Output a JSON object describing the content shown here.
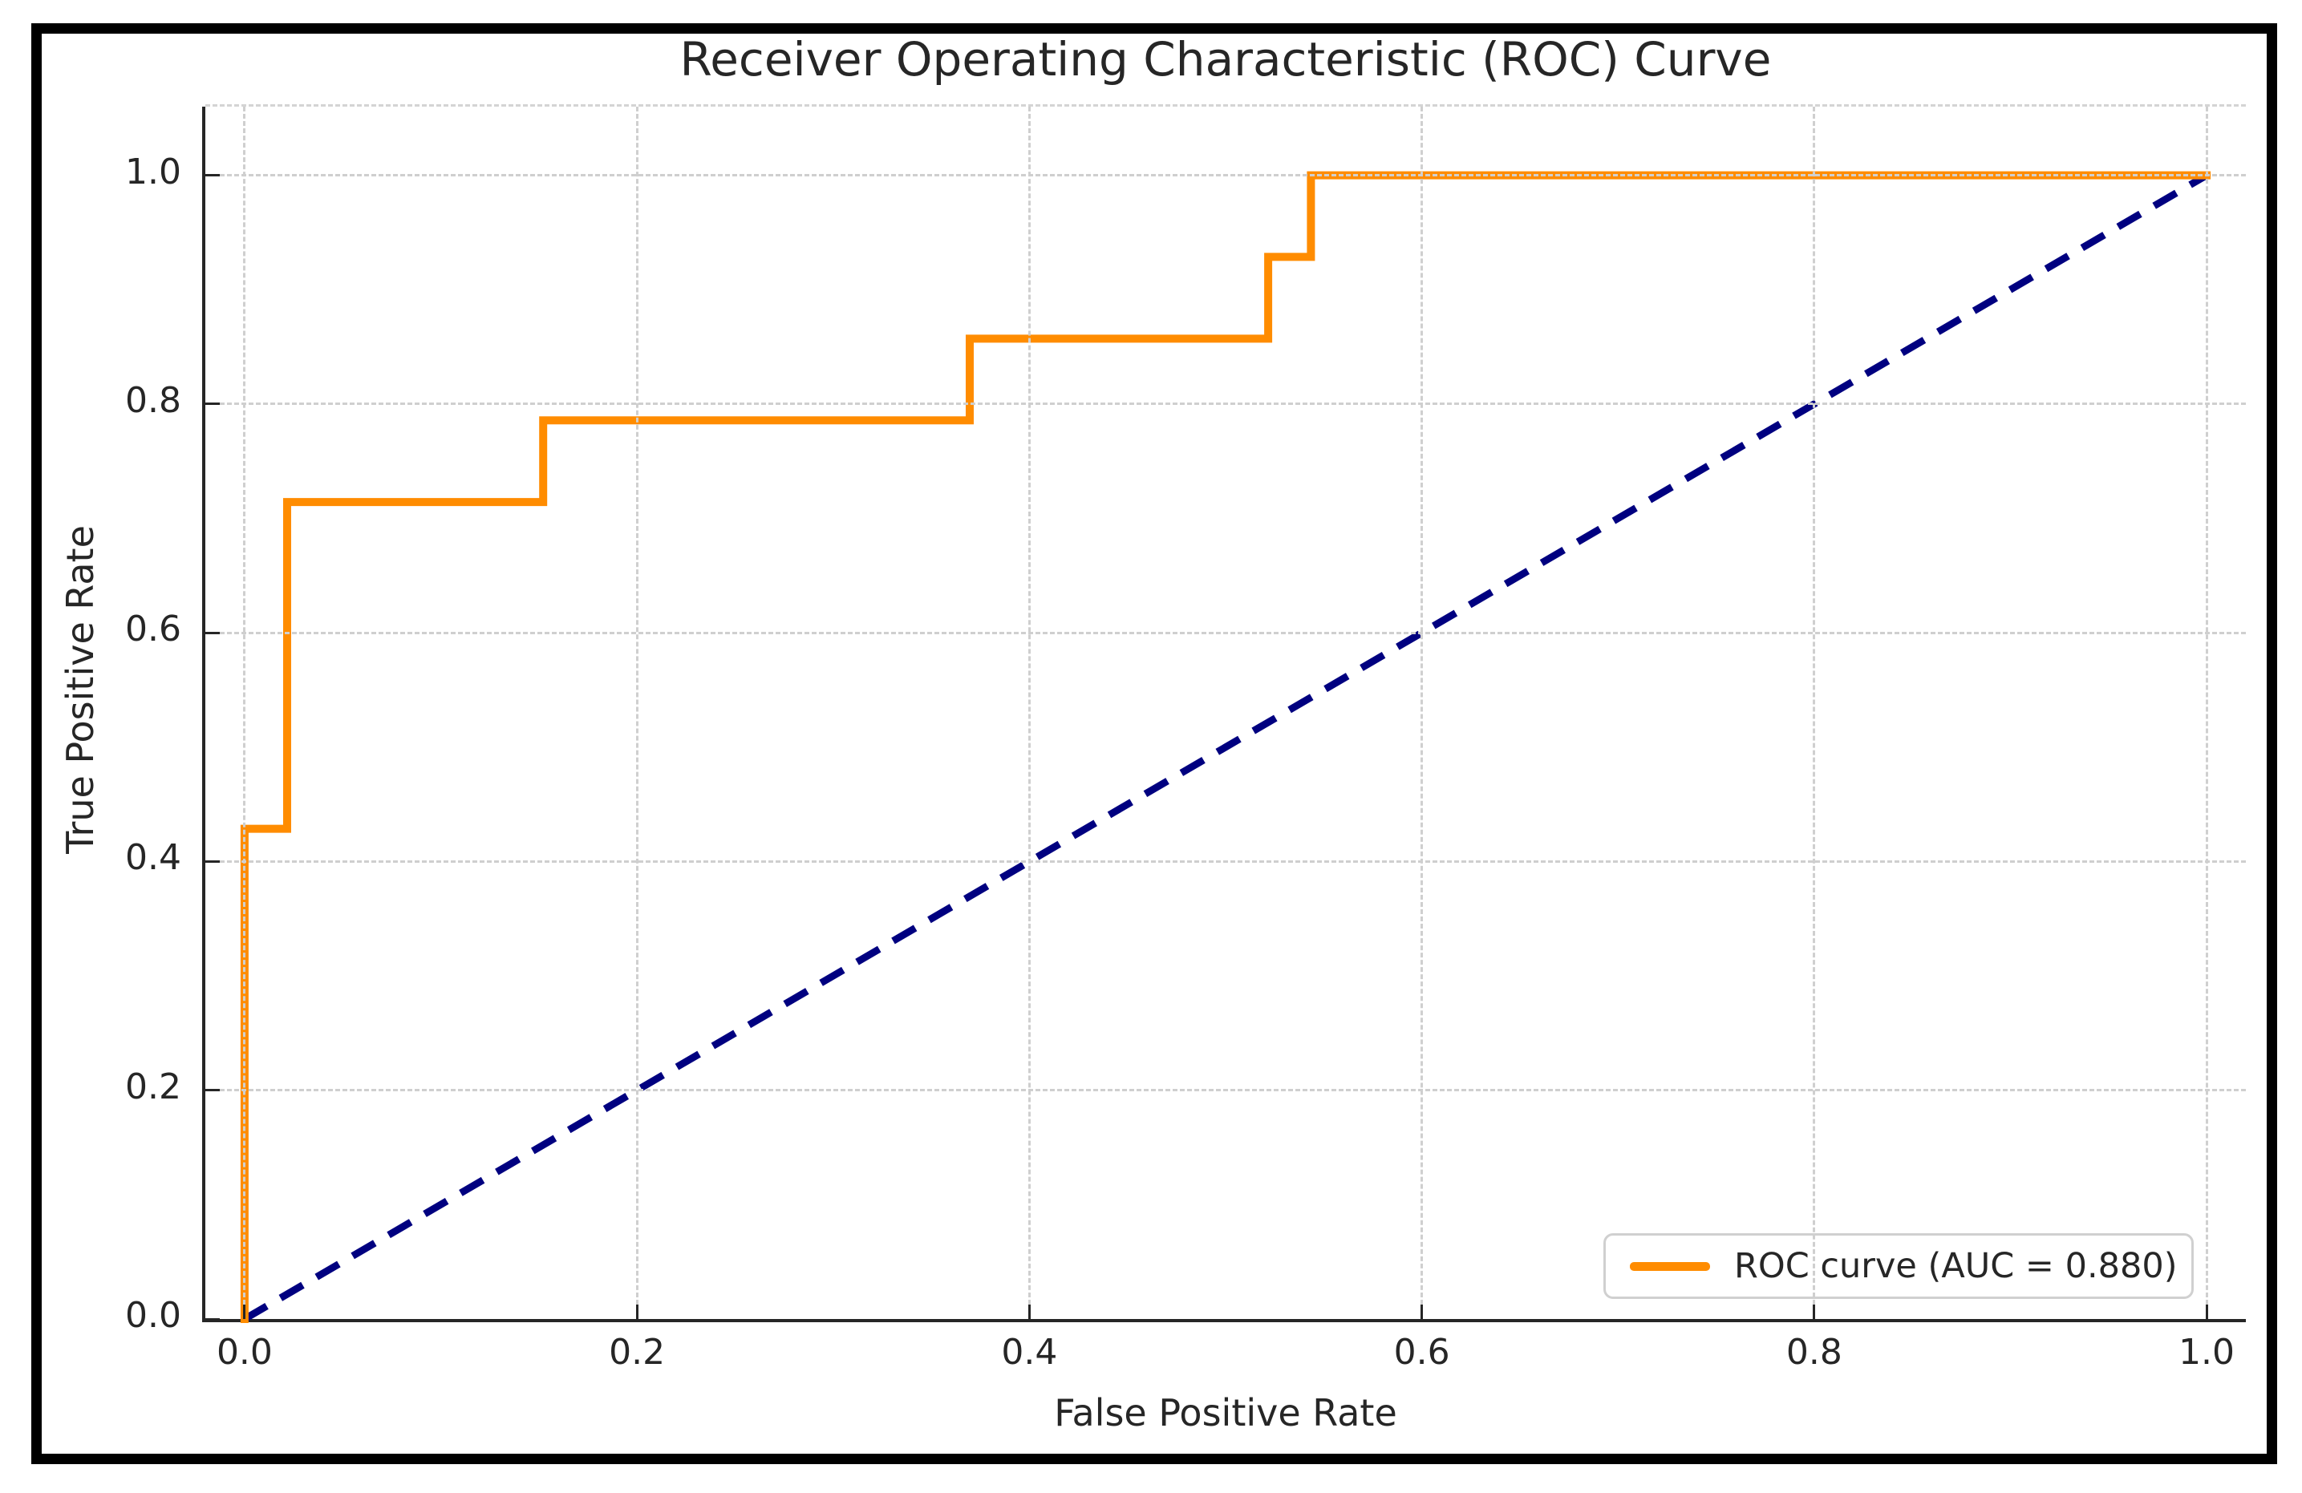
{
  "title": "Receiver Operating Characteristic (ROC) Curve",
  "chart_data": {
    "type": "line",
    "title": "Receiver Operating Characteristic (ROC) Curve",
    "xlabel": "False Positive Rate",
    "ylabel": "True Positive Rate",
    "xlim": [
      -0.02,
      1.02
    ],
    "ylim": [
      0,
      1.06
    ],
    "grid": true,
    "grid_style": "dashed",
    "x_ticks": [
      0.0,
      0.2,
      0.4,
      0.6,
      0.8,
      1.0
    ],
    "y_ticks": [
      0.0,
      0.2,
      0.4,
      0.6,
      0.8,
      1.0
    ],
    "x_tick_labels": [
      "0.0",
      "0.2",
      "0.4",
      "0.6",
      "0.8",
      "1.0"
    ],
    "y_tick_labels": [
      "0.0",
      "0.2",
      "0.4",
      "0.6",
      "0.8",
      "1.0"
    ],
    "auc": 0.88,
    "series": [
      {
        "name": "ROC curve (AUC = 0.880)",
        "color": "#FF8C00",
        "style": "solid",
        "line_width": 10,
        "x": [
          0.0,
          0.0,
          0.0217,
          0.0217,
          0.1522,
          0.1522,
          0.3696,
          0.3696,
          0.5217,
          0.5217,
          0.5435,
          0.5435,
          1.0
        ],
        "y": [
          0.0,
          0.4286,
          0.4286,
          0.7143,
          0.7143,
          0.7857,
          0.7857,
          0.8571,
          0.8571,
          0.9286,
          0.9286,
          1.0,
          1.0
        ]
      },
      {
        "name": "chance-diagonal",
        "color": "#000080",
        "style": "dashed",
        "line_width": 9,
        "x": [
          0.0,
          1.0
        ],
        "y": [
          0.0,
          1.0
        ]
      }
    ],
    "legend": {
      "position": "lower right",
      "entries": [
        {
          "label": "ROC curve (AUC = 0.880)",
          "color": "#FF8C00"
        }
      ]
    }
  },
  "colors": {
    "roc_curve": "#FF8C00",
    "chance_line": "#000080",
    "gridline": "#cfcfcf",
    "spine": "#262626",
    "text": "#262626",
    "legend_border": "#d0d0d0",
    "frame_border": "#000000",
    "background": "#ffffff"
  }
}
